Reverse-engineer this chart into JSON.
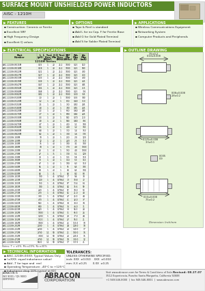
{
  "title": "SURFACE MOUNT UNSHIELDED POWER INDUCTORS",
  "subtitle": "AISC - 1210H",
  "bg_color": "#f5f5f5",
  "green_dark": "#5a8a2a",
  "green_medium": "#7ab030",
  "green_light": "#d8eec8",
  "green_section": "#e8f5d8",
  "features_title": "FEATURES",
  "features": [
    "Construction: Ceramic or Ferrite",
    "Excellent SRF",
    "High Frequency Design",
    "Excellent Q values"
  ],
  "options_title": "OPTIONS",
  "options": [
    "Tape & Reel is standard",
    "Add L for no Cap, F for Ferrite Base",
    "Add G for Gold Plated Terminal",
    "Add S for Solder Plated Terminal"
  ],
  "applications_title": "APPLICATIONS",
  "applications": [
    "Wireless Communications Equipment",
    "Networking System",
    "Computer Products and Peripherals"
  ],
  "elec_title": "ELECTRICAL SPECIFICATIONS",
  "outline_title": "OUTLINE DRAWING",
  "series_label": "1210H Series",
  "table_col_headers": [
    "Part\nNumber",
    "L\n(µH)",
    "L  Test\nFreq\n(MHz)",
    "Q\nMin",
    "Q Test\nFreq\n(MHz)",
    "SRF\nMin\n(MHz)",
    "Rdc\nMax\n(Ω)",
    "Idc\nMax\n(mA)"
  ],
  "table_data": [
    [
      "AISC-1210H-R015M",
      "0.15",
      "1",
      "20",
      "25.2",
      "1000",
      "0.25",
      "520"
    ],
    [
      "AISC-1210H-R018M",
      "0.18",
      "1",
      "20",
      "25.2",
      "1000",
      "0.25",
      "500"
    ],
    [
      "AISC-1210H-R022M",
      "0.22",
      "1",
      "20",
      "25.2",
      "1000",
      "0.25",
      "490"
    ],
    [
      "AISC-1210H-R027M",
      "0.27",
      "1",
      "20",
      "25.2",
      "1000",
      "0.25",
      "450"
    ],
    [
      "AISC-1210H-R033M",
      "0.33",
      "1",
      "20",
      "25.2",
      "1000",
      "0.25",
      "430"
    ],
    [
      "AISC-1210H-R039M",
      "0.39",
      "1",
      "20",
      "25.2",
      "1000",
      "0.25",
      "465"
    ],
    [
      "AISC-1210H-R047M",
      "0.47",
      "1",
      "20",
      "25.2",
      "1000",
      "0.25",
      "445"
    ],
    [
      "AISC-1210H-R056M",
      "0.56",
      "1",
      "20",
      "25.2",
      "1000",
      "0.25",
      "415"
    ],
    [
      "AISC-1210H-R068M",
      "0.68",
      "1",
      "20",
      "25.2",
      "1000",
      "0.25",
      "395"
    ],
    [
      "AISC-1210H-R082M",
      "0.82",
      "1",
      "20",
      "25.2",
      "1000",
      "0.30",
      "365"
    ],
    [
      "AISC-1210H-R100M",
      "1.0",
      "1",
      "20",
      "1",
      "1000",
      "0.35",
      "340"
    ],
    [
      "AISC-1210H-R120M",
      "1.2",
      "1",
      "20",
      "1",
      "850",
      "0.40",
      "310"
    ],
    [
      "AISC-1210H-R150M",
      "1.5",
      "1",
      "20",
      "1",
      "750",
      "0.50",
      "285"
    ],
    [
      "AISC-1210H-R180M",
      "1.8",
      "1",
      "20",
      "1",
      "700",
      "0.55",
      "265"
    ],
    [
      "AISC-1210H-R220M",
      "2.2",
      "1",
      "20",
      "1",
      "650",
      "0.60",
      "245"
    ],
    [
      "AISC-1210H-R270M",
      "2.7",
      "1",
      "20",
      "1",
      "600",
      "0.65",
      "225"
    ],
    [
      "AISC-1210H-R330M",
      "3.3",
      "1",
      "20",
      "1",
      "550",
      "0.70",
      "210"
    ],
    [
      "AISC-1210H-R390M",
      "3.9",
      "1",
      "20",
      "1",
      "500",
      "0.80",
      "195"
    ],
    [
      "AISC-1210H-R470M",
      "4.7",
      "1",
      "20",
      "1",
      "450",
      "1.1",
      "180"
    ],
    [
      "AISC-1210H-R560M",
      "5.6",
      "1",
      "20",
      "1",
      "400",
      "1.2",
      "165"
    ],
    [
      "AISC-1210H-R680M",
      "6.8",
      "1",
      "20",
      "1",
      "350",
      "1.4",
      "150"
    ],
    [
      "AISC-1210H-R820M",
      "8.2",
      "1",
      "20",
      "1",
      "300",
      "1.6",
      "135"
    ],
    [
      "AISC-1210H-100M",
      "10",
      "1",
      "20",
      "1",
      "250",
      "2.0",
      "120"
    ],
    [
      "AISC-1210H-120M",
      "12",
      "1",
      "20",
      "1",
      "220",
      "2.5",
      "110"
    ],
    [
      "AISC-1210H-150M",
      "15",
      "1",
      "40",
      "1",
      "100",
      "3.1",
      "100"
    ],
    [
      "AISC-1210H-180M",
      "18",
      "1",
      "40",
      "1",
      "170",
      "4.0",
      "1003"
    ],
    [
      "AISC-1210H-220M",
      "22",
      "1",
      "40",
      "1",
      "150",
      "4.0",
      "1003"
    ],
    [
      "AISC-1210H-270M",
      "27",
      "1",
      "35",
      "1",
      "130",
      "5.1",
      "129"
    ],
    [
      "AISC-1210H-330M",
      "33",
      "1",
      "40",
      "1",
      "115",
      "5.8",
      "119"
    ],
    [
      "AISC-1210H-390M",
      "39",
      "1",
      "40",
      "1",
      "110",
      "5.3",
      "115"
    ],
    [
      "AISC-1210H-470M",
      "47",
      "1",
      "40",
      "1",
      "100",
      "6.3",
      "110"
    ],
    [
      "AISC-1210H-560M",
      "56",
      "1",
      "40",
      "1",
      "95",
      "6.5",
      "105"
    ],
    [
      "AISC-1210H-680M",
      "68",
      "1",
      "40",
      "1",
      "88",
      "6.5",
      "100"
    ],
    [
      "AISC-1210H-820M",
      "82",
      "1",
      "45",
      "1",
      "82",
      "8.2",
      "88"
    ],
    [
      "AISC-1210H-101M",
      "100",
      "1",
      "45",
      "0.7964",
      "77",
      "9.6",
      "78"
    ],
    [
      "AISC-1210H-121M",
      "120",
      "1",
      "45",
      "0.7964",
      "73",
      "10.8",
      "72"
    ],
    [
      "AISC-1210H-151M",
      "150",
      "1",
      "45",
      "0.7964",
      "67",
      "13.4",
      "64"
    ],
    [
      "AISC-1210H-181M",
      "180",
      "1",
      "45",
      "0.7964",
      "62",
      "15.6",
      "59"
    ],
    [
      "AISC-1210H-221M",
      "220",
      "1",
      "45",
      "0.7964",
      "57",
      "18.0",
      "53"
    ],
    [
      "AISC-1210H-271M",
      "270",
      "1",
      "45",
      "0.7964",
      "52",
      "21.0",
      "48"
    ],
    [
      "AISC-1210H-331M",
      "330",
      "1",
      "45",
      "0.7964",
      "47",
      "25.0",
      "44"
    ],
    [
      "AISC-1210H-471M",
      "470",
      "1",
      "45",
      "0.7964",
      "41",
      "32.0",
      "37"
    ],
    [
      "AISC-1210H-561M",
      "560",
      "1",
      "45",
      "0.7964",
      "38",
      "38.0",
      "34"
    ],
    [
      "AISC-1210H-681M",
      "680",
      "1",
      "45",
      "0.7964",
      "36",
      "46.0",
      "31"
    ],
    [
      "AISC-1210H-821M",
      "820",
      "1",
      "45",
      "0.7964",
      "33",
      "54.0",
      "28"
    ],
    [
      "AISC-1210H-102M",
      "1000",
      "1",
      "45",
      "0.7964",
      "31",
      "65.0",
      "26"
    ],
    [
      "AISC-1210H-122M",
      "1200",
      "1",
      "45",
      "0.7964",
      "29",
      "77.0",
      "24"
    ],
    [
      "AISC-1210H-152M",
      "1500",
      "1",
      "45",
      "0.7964",
      "27",
      "96.0",
      "21"
    ],
    [
      "AISC-1210H-182M",
      "1800",
      "1",
      "45",
      "0.7964",
      "25",
      "115.0",
      "19"
    ],
    [
      "AISC-1210H-202M",
      "2000",
      "1",
      "45",
      "0.7964",
      "24",
      "128.0",
      "18"
    ],
    [
      "AISC-1210H-222M",
      "2200",
      "1",
      "45",
      "0.7964",
      "23",
      "140.0",
      "17"
    ],
    [
      "AISC-1210H-272M",
      "2700",
      "1.1",
      "50",
      "0.7964",
      "21",
      "160.0",
      "16"
    ],
    [
      "AISC-1210H-332M",
      "3300",
      "1.1",
      "50",
      "0.7964",
      "20",
      "205.0",
      "15"
    ],
    [
      "AISC-1210H-472M",
      "4700",
      "1.1",
      "50",
      "0.7964",
      "18",
      "300.0",
      "12"
    ],
    [
      "AISC-1210H-562M",
      "5600",
      "1.1",
      "50",
      "0.7964",
      "17",
      "357.0",
      "41"
    ]
  ],
  "technical_title": "TECHNICAL INFORMATION",
  "technical_items": [
    "AISC-1210H-XXXX: Typical Values Only",
    "(±XXX: equal inductance value)",
    "Add –T for tape and  reel",
    "Operating Temperature: -40°C to +125°C",
    "Inductance drop 10% typical at IDC"
  ],
  "tolerances_title": "TOLERANCES:",
  "tolerances_subtitle": "UNLESS OTHERWISE SPECIFIED:",
  "tolerances_rows": [
    "inch: XXX  ±0.010    XXX  ±0.010",
    "mm: X.X ±0.25       X.XX  ±0.25"
  ],
  "outline_dim1": "0.10±0.008",
  "outline_dim1b": "7.5±0.2",
  "outline_dim2": "0.08±0.008",
  "outline_dim2b": "2.8±0.2",
  "outline_dim3": "0.125±0.008",
  "outline_dim3b": "3.3±0.1",
  "outline_dim4": "0.035",
  "outline_dim4b": "0.9",
  "outline_dim5": "0.10±0.008",
  "outline_dim5b": "7.5±0.2",
  "outline_note": "Dimension: Inch/mm",
  "footer_revised": "Revised: 08.27.07",
  "footer_addr": "3512 Experiencia, Rancho Santa Margarita, California 92688",
  "footer_phone": "+1 949-546-8000  |  fax 949-546-8001  |  www.abracon.com",
  "footer_cert": "ABRACON IS\nISO 9001 / QS 9000\nCERTIFIED",
  "footer_visit": "Visit www.abracon.com for Terms & Conditions of Sale."
}
